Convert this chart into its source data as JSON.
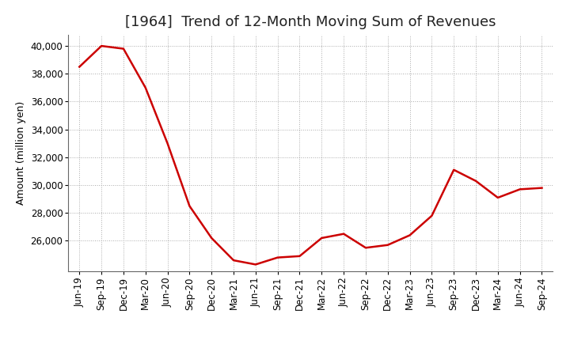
{
  "title": "[1964]  Trend of 12-Month Moving Sum of Revenues",
  "ylabel": "Amount (million yen)",
  "line_color": "#cc0000",
  "background_color": "#ffffff",
  "plot_bg_color": "#ffffff",
  "grid_color": "#aaaaaa",
  "x_labels": [
    "Jun-19",
    "Sep-19",
    "Dec-19",
    "Mar-20",
    "Jun-20",
    "Sep-20",
    "Dec-20",
    "Mar-21",
    "Jun-21",
    "Sep-21",
    "Dec-21",
    "Mar-22",
    "Jun-22",
    "Sep-22",
    "Dec-22",
    "Mar-23",
    "Jun-23",
    "Sep-23",
    "Dec-23",
    "Mar-24",
    "Jun-24",
    "Sep-24"
  ],
  "values": [
    38500,
    40000,
    39800,
    37000,
    33000,
    28500,
    26200,
    24600,
    24300,
    24800,
    24900,
    26200,
    26500,
    25500,
    25700,
    26400,
    27800,
    31100,
    30300,
    29100,
    29700,
    29800
  ],
  "ylim": [
    23800,
    40800
  ],
  "yticks": [
    26000,
    28000,
    30000,
    32000,
    34000,
    36000,
    38000,
    40000
  ],
  "title_fontsize": 13,
  "axis_fontsize": 9,
  "tick_fontsize": 8.5,
  "line_width": 1.8
}
